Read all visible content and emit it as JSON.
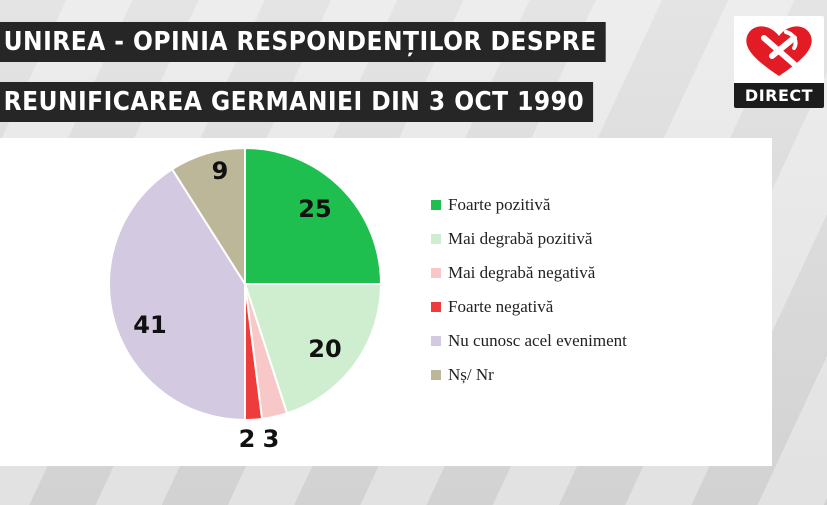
{
  "header": {
    "title_line_1": "UNIREA - OPINIA RESPONDENȚILOR DESPRE",
    "title_line_2": "REUNIFICAREA GERMANIEI DIN 3 OCT 1990"
  },
  "logo": {
    "label": "DIRECT",
    "brand_color": "#e21b24"
  },
  "chart_data": {
    "type": "pie",
    "title": "UNIREA - OPINIA RESPONDENȚILOR DESPRE REUNIFICAREA GERMANIEI DIN 3 OCT 1990",
    "start_angle": "12 o'clock",
    "direction": "clockwise",
    "legend_position": "right",
    "slices": [
      {
        "name": "Foarte pozitivă",
        "value": 25,
        "label": "25",
        "color": "#1fbf4f"
      },
      {
        "name": "Mai degrabă pozitivă",
        "value": 20,
        "label": "20",
        "color": "#cfeecf"
      },
      {
        "name": "Mai degrabă negativă",
        "value": 3,
        "label": "3",
        "color": "#f8c8c8"
      },
      {
        "name": "Foarte negativă",
        "value": 2,
        "label": "2",
        "color": "#ee3b3b"
      },
      {
        "name": "Nu cunosc acel eveniment",
        "value": 41,
        "label": "41",
        "color": "#d3c9e1"
      },
      {
        "name": "Nș/ Nr",
        "value": 9,
        "label": "9",
        "color": "#bdb79a"
      }
    ]
  }
}
